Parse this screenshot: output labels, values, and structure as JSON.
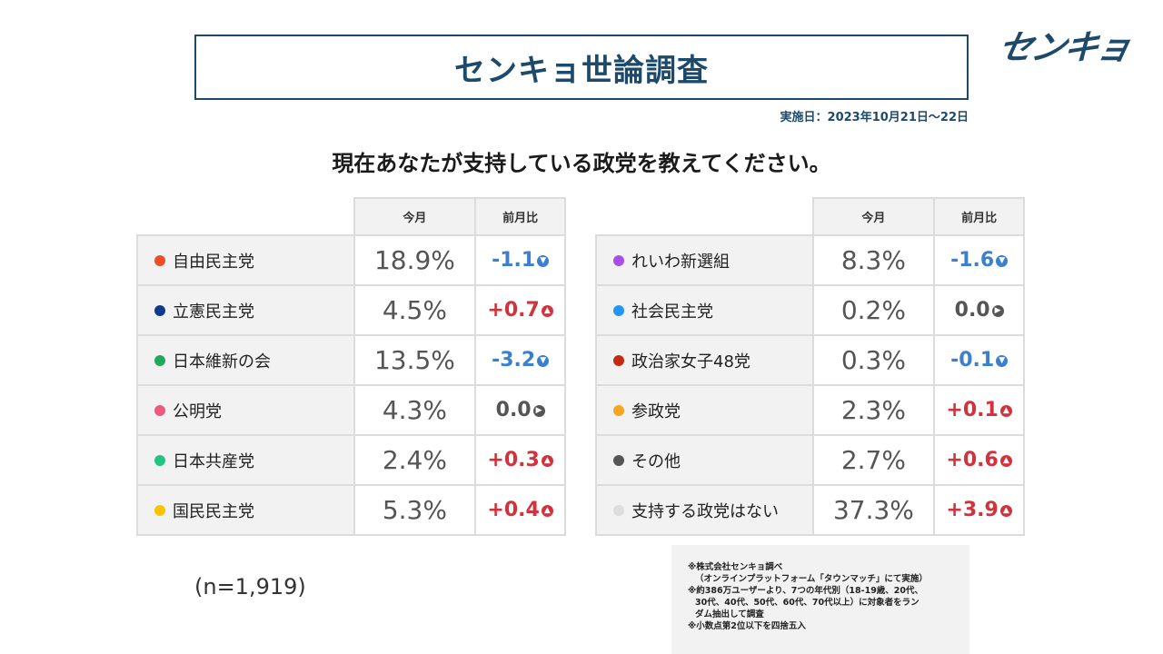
{
  "header": {
    "title": "センキョ世論調査",
    "logo": "センキョ",
    "date": "実施日：2023年10月21日〜22日",
    "question": "現在あなたが支持している政党を教えてください。"
  },
  "colors": {
    "accent": "#1d4a6b",
    "increase": "#d1323c",
    "decrease": "#3a7fd0",
    "unchanged": "#555555"
  },
  "table_headers": {
    "current": "今月",
    "change": "前月比"
  },
  "chart_data": {
    "type": "table",
    "columns": [
      "今月",
      "前月比"
    ],
    "left_rows": [
      {
        "party": "自由民主党",
        "color": "#ea4f2a",
        "current": "18.9%",
        "change": "-1.1",
        "direction": "down"
      },
      {
        "party": "立憲民主党",
        "color": "#0d3a8c",
        "current": "4.5%",
        "change": "+0.7",
        "direction": "up"
      },
      {
        "party": "日本維新の会",
        "color": "#22a85a",
        "current": "13.5%",
        "change": "-3.2",
        "direction": "down"
      },
      {
        "party": "公明党",
        "color": "#ef5a7c",
        "current": "4.3%",
        "change": "0.0",
        "direction": "flat"
      },
      {
        "party": "日本共産党",
        "color": "#22c47e",
        "current": "2.4%",
        "change": "+0.3",
        "direction": "up"
      },
      {
        "party": "国民民主党",
        "color": "#f6c500",
        "current": "5.3%",
        "change": "+0.4",
        "direction": "up"
      }
    ],
    "right_rows": [
      {
        "party": "れいわ新選組",
        "color": "#a64ee6",
        "current": "8.3%",
        "change": "-1.6",
        "direction": "down"
      },
      {
        "party": "社会民主党",
        "color": "#2196f3",
        "current": "0.2%",
        "change": "0.0",
        "direction": "flat"
      },
      {
        "party": "政治家女子48党",
        "color": "#c52a12",
        "current": "0.3%",
        "change": "-0.1",
        "direction": "down"
      },
      {
        "party": "参政党",
        "color": "#f5a623",
        "current": "2.3%",
        "change": "+0.1",
        "direction": "up"
      },
      {
        "party": "その他",
        "color": "#555555",
        "current": "2.7%",
        "change": "+0.6",
        "direction": "up"
      },
      {
        "party": "支持する政党はない",
        "color": "#dddddd",
        "current": "37.3%",
        "change": "+3.9",
        "direction": "up"
      }
    ]
  },
  "sample_size": "(n=1,919)",
  "notes": [
    "※株式会社センキョ調べ",
    "（オンラインプラットフォーム「タウンマッチ」にて実施）",
    "※約386万ユーザーより、7つの年代別（18-19歳、20代、",
    "30代、40代、50代、60代、70代以上）に対象者をラン",
    "ダム抽出して調査",
    "※小数点第2位以下を四捨五入"
  ]
}
